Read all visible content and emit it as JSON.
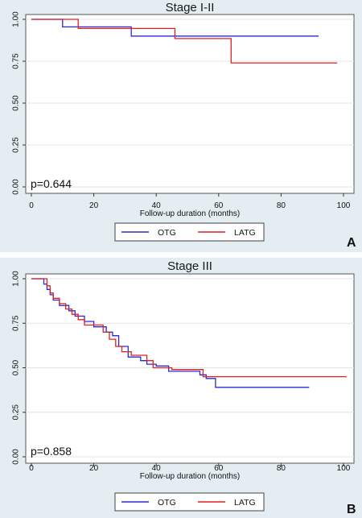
{
  "chart_data": [
    {
      "type": "line",
      "title": "Stage I-II",
      "xlabel": "Follow-up duration (months)",
      "ylabel": "",
      "xlim": [
        0,
        100
      ],
      "ylim": [
        0,
        1
      ],
      "xticks": [
        0,
        20,
        40,
        60,
        80,
        100
      ],
      "xtick_labels": [
        "0",
        "20",
        "40",
        "60",
        "80",
        "100"
      ],
      "yticks": [
        0,
        0.25,
        0.5,
        0.75,
        1
      ],
      "ytick_labels": [
        "0.00",
        "0.25",
        "0.50",
        "0.75",
        "1.00"
      ],
      "annotation": "p=0.644",
      "panel_label": "A",
      "grid": true,
      "legend_position": "bottom",
      "series": [
        {
          "name": "OTG",
          "color": "#2a2ad0",
          "step": true,
          "x": [
            0,
            10,
            10,
            32,
            32,
            92
          ],
          "y": [
            1,
            1,
            0.955,
            0.955,
            0.9,
            0.9
          ]
        },
        {
          "name": "LATG",
          "color": "#e02020",
          "step": true,
          "x": [
            0,
            15,
            15,
            46,
            46,
            64,
            64,
            98
          ],
          "y": [
            1,
            1,
            0.945,
            0.945,
            0.885,
            0.885,
            0.74,
            0.74
          ]
        }
      ]
    },
    {
      "type": "line",
      "title": "Stage III",
      "xlabel": "Follow-up duration (months)",
      "ylabel": "",
      "xlim": [
        0,
        100
      ],
      "ylim": [
        0,
        1
      ],
      "xticks": [
        0,
        20,
        40,
        60,
        80,
        100
      ],
      "xtick_labels": [
        "0",
        "20",
        "40",
        "60",
        "80",
        "100"
      ],
      "yticks": [
        0,
        0.25,
        0.5,
        0.75,
        1
      ],
      "ytick_labels": [
        "0.00",
        "0.25",
        "0.50",
        "0.75",
        "1.00"
      ],
      "annotation": "p=0.858",
      "panel_label": "B",
      "grid": true,
      "legend_position": "bottom",
      "series": [
        {
          "name": "OTG",
          "color": "#2a2ad0",
          "step": true,
          "x": [
            0,
            4,
            4,
            5,
            5,
            6,
            6,
            7,
            7,
            9,
            9,
            12,
            12,
            14,
            14,
            17,
            17,
            20,
            20,
            24,
            24,
            26,
            26,
            28,
            28,
            31,
            31,
            35,
            35,
            37,
            37,
            40,
            40,
            44,
            44,
            54,
            54,
            56,
            56,
            59,
            59,
            89
          ],
          "y": [
            1,
            1,
            0.97,
            0.97,
            0.94,
            0.94,
            0.91,
            0.91,
            0.88,
            0.88,
            0.85,
            0.85,
            0.82,
            0.82,
            0.79,
            0.79,
            0.76,
            0.76,
            0.73,
            0.73,
            0.7,
            0.7,
            0.68,
            0.68,
            0.62,
            0.62,
            0.56,
            0.56,
            0.54,
            0.54,
            0.52,
            0.52,
            0.51,
            0.51,
            0.48,
            0.48,
            0.46,
            0.46,
            0.44,
            0.44,
            0.39,
            0.39
          ]
        },
        {
          "name": "LATG",
          "color": "#e02020",
          "step": true,
          "x": [
            0,
            5,
            5,
            6,
            6,
            7,
            7,
            9,
            9,
            11,
            11,
            13,
            13,
            15,
            15,
            17,
            17,
            23,
            23,
            25,
            25,
            27,
            27,
            29,
            29,
            32,
            32,
            37,
            37,
            39,
            39,
            45,
            45,
            55,
            55,
            101
          ],
          "y": [
            1,
            1,
            0.96,
            0.96,
            0.92,
            0.92,
            0.89,
            0.89,
            0.86,
            0.86,
            0.83,
            0.83,
            0.8,
            0.8,
            0.77,
            0.77,
            0.74,
            0.74,
            0.7,
            0.7,
            0.66,
            0.66,
            0.62,
            0.62,
            0.59,
            0.59,
            0.57,
            0.57,
            0.54,
            0.54,
            0.5,
            0.5,
            0.49,
            0.49,
            0.45,
            0.45
          ]
        }
      ]
    }
  ]
}
